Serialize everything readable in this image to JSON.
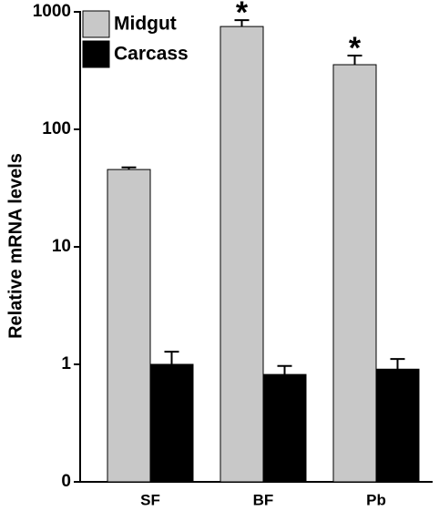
{
  "chart_data": {
    "type": "bar",
    "log_scale": true,
    "y_label": "Relative mRNA levels",
    "categories": [
      "SF",
      "BF",
      "Pb"
    ],
    "series": [
      {
        "name": "Midgut",
        "color": "#c8c8c8",
        "values": [
          45.5,
          750,
          355
        ],
        "errors": [
          2,
          100,
          70
        ]
      },
      {
        "name": "Carcass",
        "color": "#000000",
        "values": [
          1.0,
          0.82,
          0.91
        ],
        "errors": [
          0.28,
          0.15,
          0.2
        ]
      }
    ],
    "annotations": [
      {
        "category": "BF",
        "series": "Midgut",
        "text": "*"
      },
      {
        "category": "Pb",
        "series": "Midgut",
        "text": "*"
      }
    ],
    "ylim": [
      0.1,
      1000
    ],
    "yticks": [
      {
        "value": 0.1,
        "label": "0"
      },
      1,
      10,
      100,
      1000
    ],
    "legend": "top-left"
  }
}
